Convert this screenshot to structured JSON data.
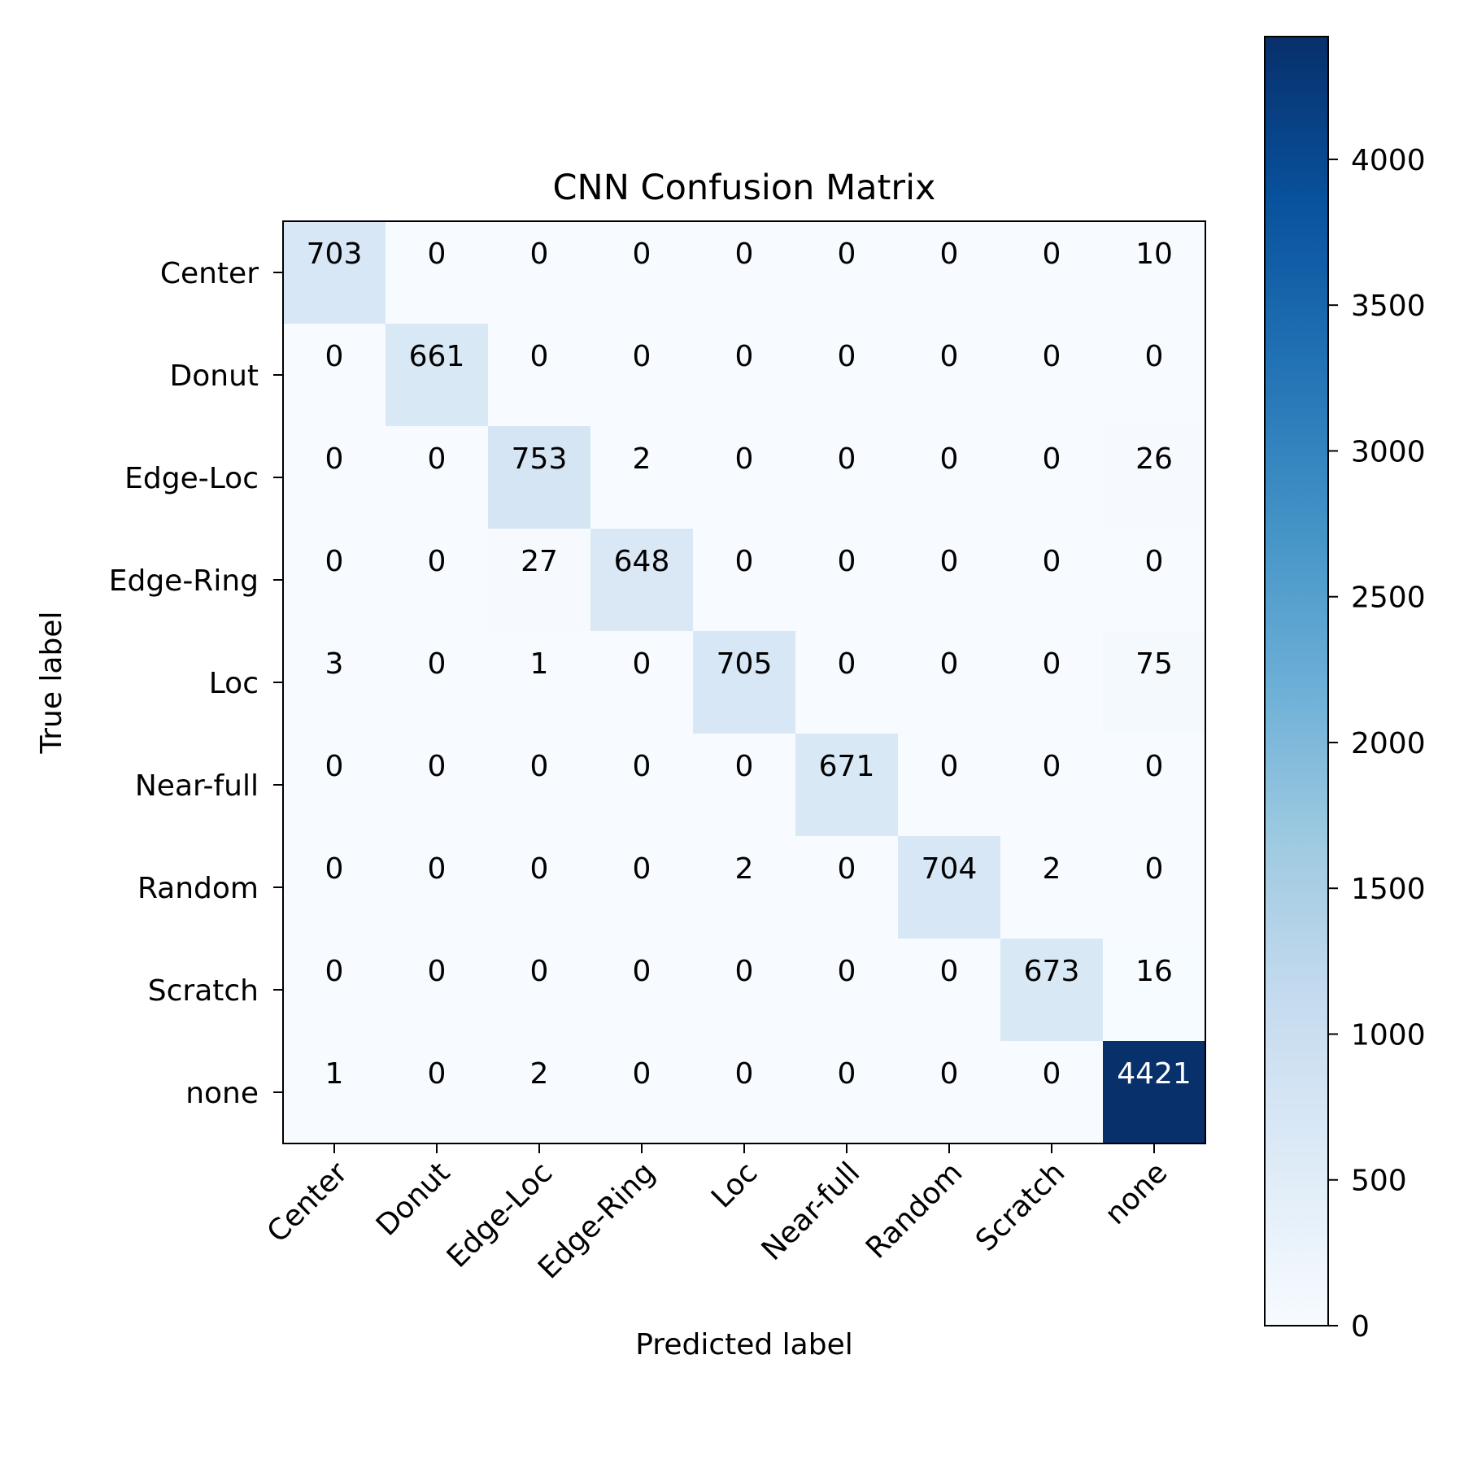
{
  "chart_data": {
    "type": "heatmap",
    "title": "CNN Confusion Matrix",
    "xlabel": "Predicted label",
    "ylabel": "True label",
    "x_categories": [
      "Center",
      "Donut",
      "Edge-Loc",
      "Edge-Ring",
      "Loc",
      "Near-full",
      "Random",
      "Scratch",
      "none"
    ],
    "y_categories": [
      "Center",
      "Donut",
      "Edge-Loc",
      "Edge-Ring",
      "Loc",
      "Near-full",
      "Random",
      "Scratch",
      "none"
    ],
    "values": [
      [
        703,
        0,
        0,
        0,
        0,
        0,
        0,
        0,
        10
      ],
      [
        0,
        661,
        0,
        0,
        0,
        0,
        0,
        0,
        0
      ],
      [
        0,
        0,
        753,
        2,
        0,
        0,
        0,
        0,
        26
      ],
      [
        0,
        0,
        27,
        648,
        0,
        0,
        0,
        0,
        0
      ],
      [
        3,
        0,
        1,
        0,
        705,
        0,
        0,
        0,
        75
      ],
      [
        0,
        0,
        0,
        0,
        0,
        671,
        0,
        0,
        0
      ],
      [
        0,
        0,
        0,
        0,
        2,
        0,
        704,
        2,
        0
      ],
      [
        0,
        0,
        0,
        0,
        0,
        0,
        0,
        673,
        16
      ],
      [
        1,
        0,
        2,
        0,
        0,
        0,
        0,
        0,
        4421
      ]
    ],
    "colormap": "Blues",
    "colorbar": {
      "range": [
        0,
        4421
      ],
      "ticks": [
        0,
        500,
        1000,
        1500,
        2000,
        2500,
        3000,
        3500,
        4000
      ]
    }
  }
}
